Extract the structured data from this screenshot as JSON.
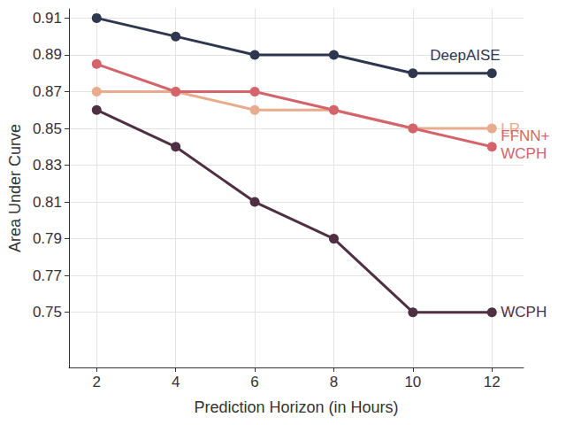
{
  "chart_data": {
    "type": "line",
    "x_label": "Prediction Horizon (in Hours)",
    "y_label": "Area Under Curve",
    "x": [
      2,
      4,
      6,
      8,
      10,
      12
    ],
    "xlim": [
      1.3,
      12.8
    ],
    "xticks": [
      2,
      4,
      6,
      8,
      10,
      12
    ],
    "ylim": [
      0.72,
      0.915
    ],
    "yticks": [
      0.75,
      0.77,
      0.79,
      0.81,
      0.83,
      0.85,
      0.87,
      0.89,
      0.91
    ],
    "grid": true,
    "marker": "circle",
    "series": [
      {
        "name": "DeepAISE",
        "color": "#2e3650",
        "values": [
          0.91,
          0.9,
          0.89,
          0.89,
          0.88,
          0.88
        ]
      },
      {
        "name": "LR",
        "color": "#e9ab8d",
        "values": [
          0.87,
          0.87,
          0.86,
          0.86,
          0.85,
          0.85
        ]
      },
      {
        "name": "FFNN+\nWCPH",
        "color": "#d4636b",
        "values": [
          0.885,
          0.87,
          0.87,
          0.86,
          0.85,
          0.84
        ]
      },
      {
        "name": "WCPH",
        "color": "#4f3042",
        "values": [
          0.86,
          0.84,
          0.81,
          0.79,
          0.75,
          0.75
        ]
      }
    ]
  }
}
